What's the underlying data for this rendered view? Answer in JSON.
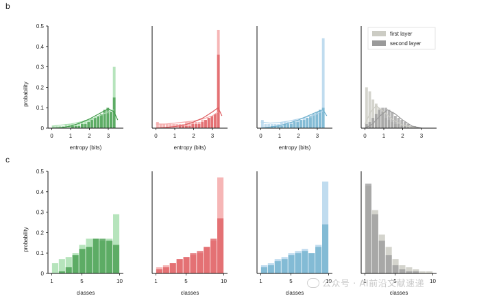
{
  "figure": {
    "panel_b_label": "b",
    "panel_c_label": "c",
    "watermark": "公众号 · AI前沿文献速递"
  },
  "legend": {
    "first": "first layer",
    "second": "second layer"
  },
  "colors": {
    "green_light": "#a9dfb0",
    "green_dark": "#3f9a48",
    "red_light": "#f5a9a9",
    "red_dark": "#dd5a5e",
    "blue_light": "#b5d6ec",
    "blue_dark": "#6fb0cc",
    "gray_light": "#ccccc4",
    "gray_dark": "#9a9a9a"
  },
  "chart_data": [
    {
      "id": "b1",
      "type": "histogram",
      "xlabel": "entropy (bits)",
      "ylabel": "probability",
      "xlim": [
        -0.2,
        3.8
      ],
      "ylim": [
        0,
        0.5
      ],
      "xticks": [
        0,
        1,
        2,
        3
      ],
      "yticks": [
        0,
        0.1,
        0.2,
        0.3,
        0.4,
        0.5
      ],
      "bin_edges": [
        0,
        0.17,
        0.34,
        0.51,
        0.68,
        0.85,
        1.02,
        1.19,
        1.36,
        1.53,
        1.7,
        1.87,
        2.04,
        2.21,
        2.38,
        2.55,
        2.72,
        2.89,
        3.06,
        3.23,
        3.4
      ],
      "series": [
        {
          "values": [
            0.01,
            0.01,
            0.01,
            0.01,
            0.02,
            0.02,
            0.02,
            0.02,
            0.03,
            0.03,
            0.04,
            0.04,
            0.05,
            0.05,
            0.06,
            0.06,
            0.07,
            0.07,
            0.08,
            0.3
          ],
          "color": "green_light"
        },
        {
          "values": [
            0.0,
            0.0,
            0.0,
            0.0,
            0.0,
            0.0,
            0.01,
            0.01,
            0.01,
            0.02,
            0.02,
            0.03,
            0.04,
            0.05,
            0.06,
            0.07,
            0.09,
            0.1,
            0.08,
            0.15
          ],
          "color": "green_dark"
        }
      ],
      "kde": [
        {
          "x": [
            0,
            0.5,
            1,
            1.5,
            2,
            2.5,
            3,
            3.3
          ],
          "y": [
            0.01,
            0.015,
            0.02,
            0.03,
            0.04,
            0.06,
            0.08,
            0.09
          ],
          "color": "green_light"
        },
        {
          "x": [
            0,
            0.5,
            1,
            1.5,
            2,
            2.5,
            3,
            3.3,
            3.5
          ],
          "y": [
            0.0,
            0.002,
            0.01,
            0.025,
            0.045,
            0.07,
            0.095,
            0.08,
            0.04
          ],
          "color": "green_dark"
        }
      ]
    },
    {
      "id": "b2",
      "type": "histogram",
      "xlabel": "entropy (bits)",
      "ylabel": "",
      "xlim": [
        -0.2,
        3.8
      ],
      "ylim": [
        0,
        0.5
      ],
      "xticks": [
        0,
        1,
        2,
        3
      ],
      "yticks": [],
      "bin_edges": [
        0,
        0.17,
        0.34,
        0.51,
        0.68,
        0.85,
        1.02,
        1.19,
        1.36,
        1.53,
        1.7,
        1.87,
        2.04,
        2.21,
        2.38,
        2.55,
        2.72,
        2.89,
        3.06,
        3.23,
        3.4
      ],
      "series": [
        {
          "values": [
            0.03,
            0.02,
            0.02,
            0.02,
            0.02,
            0.02,
            0.02,
            0.02,
            0.02,
            0.03,
            0.03,
            0.03,
            0.03,
            0.03,
            0.04,
            0.04,
            0.05,
            0.06,
            0.07,
            0.48
          ],
          "color": "red_light"
        },
        {
          "values": [
            0.0,
            0.0,
            0.0,
            0.0,
            0.0,
            0.0,
            0.0,
            0.01,
            0.01,
            0.01,
            0.01,
            0.02,
            0.02,
            0.02,
            0.03,
            0.04,
            0.05,
            0.06,
            0.07,
            0.36
          ],
          "color": "red_dark"
        }
      ],
      "kde": [
        {
          "x": [
            0,
            0.5,
            1,
            1.5,
            2,
            2.5,
            3,
            3.3
          ],
          "y": [
            0.02,
            0.02,
            0.025,
            0.03,
            0.035,
            0.045,
            0.06,
            0.08
          ],
          "color": "red_light"
        },
        {
          "x": [
            0,
            0.5,
            1,
            1.5,
            2,
            2.5,
            3,
            3.3,
            3.5
          ],
          "y": [
            0.0,
            0.003,
            0.008,
            0.015,
            0.03,
            0.05,
            0.08,
            0.1,
            0.06
          ],
          "color": "red_dark"
        }
      ]
    },
    {
      "id": "b3",
      "type": "histogram",
      "xlabel": "entropy (bits)",
      "ylabel": "",
      "xlim": [
        -0.2,
        3.8
      ],
      "ylim": [
        0,
        0.5
      ],
      "xticks": [
        0,
        1,
        2,
        3
      ],
      "yticks": [],
      "bin_edges": [
        0,
        0.17,
        0.34,
        0.51,
        0.68,
        0.85,
        1.02,
        1.19,
        1.36,
        1.53,
        1.7,
        1.87,
        2.04,
        2.21,
        2.38,
        2.55,
        2.72,
        2.89,
        3.06,
        3.23,
        3.4
      ],
      "series": [
        {
          "values": [
            0.04,
            0.02,
            0.02,
            0.02,
            0.02,
            0.02,
            0.03,
            0.03,
            0.03,
            0.03,
            0.04,
            0.04,
            0.04,
            0.05,
            0.05,
            0.05,
            0.06,
            0.07,
            0.09,
            0.44
          ],
          "color": "blue_light"
        },
        {
          "values": [
            0.0,
            0.0,
            0.0,
            0.01,
            0.01,
            0.01,
            0.01,
            0.02,
            0.02,
            0.02,
            0.03,
            0.03,
            0.04,
            0.04,
            0.05,
            0.06,
            0.07,
            0.08,
            0.09,
            0.1
          ],
          "color": "blue_dark"
        }
      ],
      "kde": [
        {
          "x": [
            0,
            0.5,
            1,
            1.5,
            2,
            2.5,
            3,
            3.3
          ],
          "y": [
            0.03,
            0.025,
            0.028,
            0.035,
            0.045,
            0.055,
            0.07,
            0.085
          ],
          "color": "blue_light"
        },
        {
          "x": [
            0,
            0.5,
            1,
            1.5,
            2,
            2.5,
            3,
            3.3,
            3.5
          ],
          "y": [
            0.0,
            0.005,
            0.012,
            0.025,
            0.04,
            0.06,
            0.08,
            0.09,
            0.06
          ],
          "color": "blue_dark"
        }
      ]
    },
    {
      "id": "b4",
      "type": "histogram",
      "xlabel": "",
      "ylabel": "",
      "legend": "top-right",
      "xlim": [
        -0.2,
        3.8
      ],
      "ylim": [
        0,
        0.5
      ],
      "xticks": [
        0,
        1,
        2,
        3
      ],
      "yticks": [],
      "bin_edges": [
        0,
        0.17,
        0.34,
        0.51,
        0.68,
        0.85,
        1.02,
        1.19,
        1.36,
        1.53,
        1.7,
        1.87,
        2.04,
        2.21,
        2.38,
        2.55,
        2.72,
        2.89,
        3.06,
        3.23,
        3.4
      ],
      "series": [
        {
          "name": "first layer",
          "values": [
            0.2,
            0.18,
            0.14,
            0.12,
            0.1,
            0.08,
            0.05,
            0.04,
            0.03,
            0.02,
            0.02,
            0.01,
            0.01,
            0,
            0,
            0,
            0,
            0,
            0,
            0
          ],
          "color": "gray_light"
        },
        {
          "name": "second layer",
          "values": [
            0.02,
            0.03,
            0.05,
            0.07,
            0.09,
            0.1,
            0.1,
            0.09,
            0.08,
            0.06,
            0.05,
            0.04,
            0.03,
            0.02,
            0.01,
            0.01,
            0,
            0,
            0,
            0
          ],
          "color": "gray_dark"
        }
      ],
      "kde": [
        {
          "x": [
            0,
            0.3,
            0.6,
            1.0,
            1.5,
            2.0,
            2.5,
            3.0
          ],
          "y": [
            0.02,
            0.08,
            0.11,
            0.08,
            0.04,
            0.015,
            0.005,
            0.0
          ],
          "color": "gray_light"
        },
        {
          "x": [
            0,
            0.4,
            0.8,
            1.2,
            1.6,
            2.0,
            2.5,
            3.0
          ],
          "y": [
            0.0,
            0.02,
            0.06,
            0.09,
            0.07,
            0.04,
            0.01,
            0.0
          ],
          "color": "gray_dark"
        }
      ]
    },
    {
      "id": "c1",
      "type": "histogram",
      "xlabel": "classes",
      "ylabel": "probability",
      "xlim": [
        0.5,
        10.5
      ],
      "ylim": [
        0,
        0.5
      ],
      "xticks": [
        1,
        5,
        10
      ],
      "yticks": [
        0,
        0.1,
        0.2,
        0.3,
        0.4,
        0.5
      ],
      "bin_edges": [
        1,
        1.9,
        2.8,
        3.7,
        4.6,
        5.5,
        6.4,
        7.3,
        8.2,
        9.1,
        10
      ],
      "series": [
        {
          "values": [
            0.05,
            0.07,
            0.08,
            0.1,
            0.14,
            0.17,
            0.17,
            0.16,
            0.17,
            0.29
          ],
          "color": "green_light"
        },
        {
          "values": [
            0.0,
            0.01,
            0.03,
            0.09,
            0.12,
            0.13,
            0.17,
            0.17,
            0.16,
            0.14
          ],
          "color": "green_dark"
        }
      ]
    },
    {
      "id": "c2",
      "type": "histogram",
      "xlabel": "classes",
      "ylabel": "",
      "xlim": [
        0.5,
        10.5
      ],
      "ylim": [
        0,
        0.5
      ],
      "xticks": [
        1,
        5,
        10
      ],
      "yticks": [],
      "bin_edges": [
        1,
        1.9,
        2.8,
        3.7,
        4.6,
        5.5,
        6.4,
        7.3,
        8.2,
        9.1,
        10
      ],
      "series": [
        {
          "values": [
            0.03,
            0.04,
            0.05,
            0.07,
            0.08,
            0.09,
            0.1,
            0.13,
            0.16,
            0.47
          ],
          "color": "red_light"
        },
        {
          "values": [
            0.02,
            0.03,
            0.05,
            0.07,
            0.08,
            0.1,
            0.11,
            0.13,
            0.17,
            0.27
          ],
          "color": "red_dark"
        }
      ]
    },
    {
      "id": "c3",
      "type": "histogram",
      "xlabel": "classes",
      "ylabel": "",
      "xlim": [
        0.5,
        10.5
      ],
      "ylim": [
        0,
        0.5
      ],
      "xticks": [
        1,
        5,
        10
      ],
      "yticks": [],
      "bin_edges": [
        1,
        1.9,
        2.8,
        3.7,
        4.6,
        5.5,
        6.4,
        7.3,
        8.2,
        9.1,
        10
      ],
      "series": [
        {
          "values": [
            0.04,
            0.05,
            0.07,
            0.08,
            0.1,
            0.11,
            0.12,
            0.1,
            0.14,
            0.45
          ],
          "color": "blue_light"
        },
        {
          "values": [
            0.03,
            0.04,
            0.06,
            0.07,
            0.09,
            0.1,
            0.11,
            0.1,
            0.13,
            0.24
          ],
          "color": "blue_dark"
        }
      ]
    },
    {
      "id": "c4",
      "type": "histogram",
      "xlabel": "classes",
      "ylabel": "",
      "xlim": [
        0.5,
        10.5
      ],
      "ylim": [
        0,
        0.5
      ],
      "xticks": [
        1,
        5,
        10
      ],
      "yticks": [],
      "bin_edges": [
        1,
        1.9,
        2.8,
        3.7,
        4.6,
        5.5,
        6.4,
        7.3,
        8.2,
        9.1,
        10
      ],
      "series": [
        {
          "values": [
            0.43,
            0.31,
            0.19,
            0.13,
            0.07,
            0.04,
            0.03,
            0.02,
            0.01,
            0.01
          ],
          "color": "gray_light"
        },
        {
          "values": [
            0.44,
            0.29,
            0.16,
            0.09,
            0.04,
            0.02,
            0.01,
            0.01,
            0.0,
            0.0
          ],
          "color": "gray_dark"
        }
      ]
    }
  ]
}
